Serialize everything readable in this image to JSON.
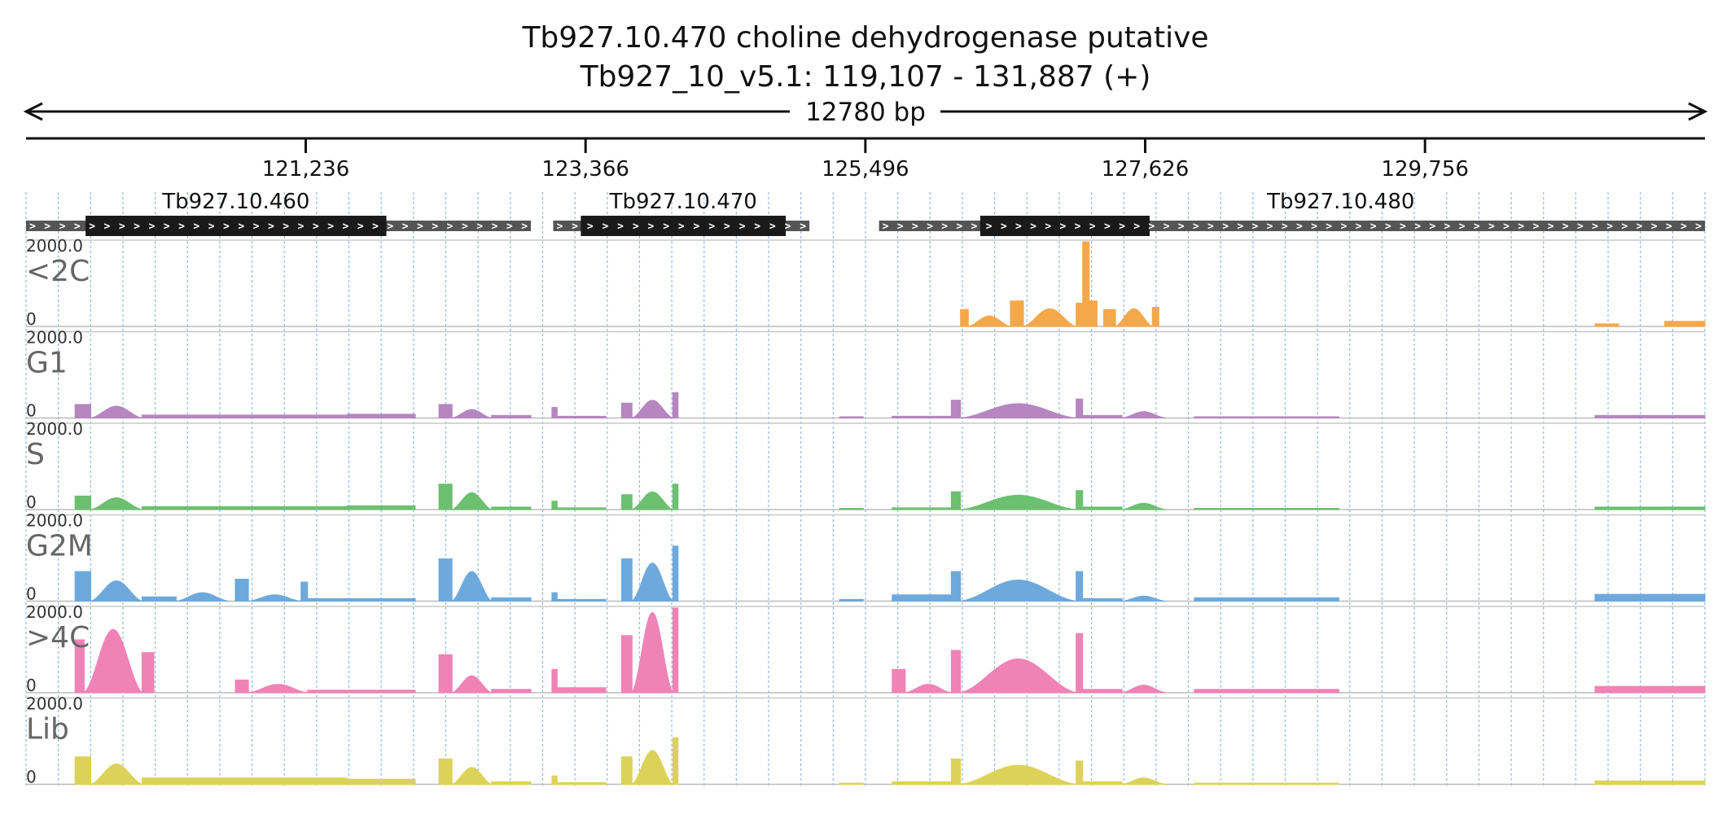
{
  "title": {
    "line1": "Tb927.10.470  choline dehydrogenase  putative",
    "line2": "Tb927_10_v5.1: 119,107 - 131,887 (+)"
  },
  "span": {
    "label": "12780 bp"
  },
  "colors": {
    "<2C": "#f5a84a",
    "G1": "#b586bf",
    "S": "#6cc06f",
    "G2M": "#6ea9dc",
    ">4C": "#f083b6",
    "Lib": "#dcd25a",
    "gene_core": "#1a1a1a",
    "gene_flank": "#555555",
    "gridline": "#8fb9df"
  },
  "chart_data": {
    "type": "area",
    "region": {
      "chrom": "Tb927_10_v5.1",
      "start": 119107,
      "end": 131887,
      "strand": "+"
    },
    "x_ticks": [
      {
        "pos": 121236,
        "label": "121,236"
      },
      {
        "pos": 123366,
        "label": "123,366"
      },
      {
        "pos": 125496,
        "label": "125,496"
      },
      {
        "pos": 127626,
        "label": "127,626"
      },
      {
        "pos": 129756,
        "label": "129,756"
      }
    ],
    "genes": [
      {
        "name": "Tb927.10.460",
        "start": 119107,
        "end": 122950,
        "cds_start": 119560,
        "cds_end": 121850
      },
      {
        "name": "Tb927.10.470",
        "start": 123120,
        "end": 125070,
        "cds_start": 123330,
        "cds_end": 124890
      },
      {
        "name": "Tb927.10.480",
        "start": 125600,
        "end": 131887,
        "cds_start": 126370,
        "cds_end": 127660
      }
    ],
    "ylim": [
      0,
      2000
    ],
    "ymax_label": "2000.0",
    "ymin_label": "0",
    "tracks": [
      {
        "name": "<2C",
        "segments": [
          {
            "start": 126220,
            "end": 126280,
            "peak": 400,
            "shape": "flat"
          },
          {
            "start": 126280,
            "end": 126600,
            "peak": 250,
            "shape": "hump"
          },
          {
            "start": 126600,
            "end": 126700,
            "peak": 600,
            "shape": "flat"
          },
          {
            "start": 126700,
            "end": 127100,
            "peak": 420,
            "shape": "hump"
          },
          {
            "start": 127100,
            "end": 127150,
            "peak": 550,
            "shape": "flat"
          },
          {
            "start": 127150,
            "end": 127200,
            "peak": 2000,
            "shape": "flat"
          },
          {
            "start": 127200,
            "end": 127260,
            "peak": 600,
            "shape": "flat"
          },
          {
            "start": 127310,
            "end": 127400,
            "peak": 400,
            "shape": "flat"
          },
          {
            "start": 127400,
            "end": 127680,
            "peak": 420,
            "shape": "hump"
          },
          {
            "start": 127680,
            "end": 127730,
            "peak": 450,
            "shape": "flat"
          },
          {
            "start": 131050,
            "end": 131230,
            "peak": 60,
            "shape": "flat"
          },
          {
            "start": 131580,
            "end": 131887,
            "peak": 120,
            "shape": "flat"
          }
        ]
      },
      {
        "name": "G1",
        "segments": [
          {
            "start": 119480,
            "end": 119600,
            "peak": 320,
            "shape": "flat"
          },
          {
            "start": 119600,
            "end": 119990,
            "peak": 280,
            "shape": "hump"
          },
          {
            "start": 119990,
            "end": 121550,
            "peak": 70,
            "shape": "flat"
          },
          {
            "start": 121550,
            "end": 122070,
            "peak": 90,
            "shape": "flat"
          },
          {
            "start": 122250,
            "end": 122350,
            "peak": 320,
            "shape": "flat"
          },
          {
            "start": 122350,
            "end": 122650,
            "peak": 200,
            "shape": "hump"
          },
          {
            "start": 122650,
            "end": 122950,
            "peak": 60,
            "shape": "flat"
          },
          {
            "start": 123110,
            "end": 123150,
            "peak": 250,
            "shape": "flat"
          },
          {
            "start": 123150,
            "end": 123520,
            "peak": 40,
            "shape": "flat"
          },
          {
            "start": 123640,
            "end": 123720,
            "peak": 350,
            "shape": "flat"
          },
          {
            "start": 123720,
            "end": 124030,
            "peak": 420,
            "shape": "hump"
          },
          {
            "start": 124030,
            "end": 124070,
            "peak": 600,
            "shape": "flat"
          },
          {
            "start": 125300,
            "end": 125480,
            "peak": 30,
            "shape": "flat"
          },
          {
            "start": 125700,
            "end": 126150,
            "peak": 40,
            "shape": "flat"
          },
          {
            "start": 126150,
            "end": 126220,
            "peak": 420,
            "shape": "flat"
          },
          {
            "start": 126220,
            "end": 127100,
            "peak": 340,
            "shape": "hump"
          },
          {
            "start": 127100,
            "end": 127150,
            "peak": 450,
            "shape": "flat"
          },
          {
            "start": 127150,
            "end": 127450,
            "peak": 60,
            "shape": "flat"
          },
          {
            "start": 127450,
            "end": 127780,
            "peak": 150,
            "shape": "hump"
          },
          {
            "start": 128000,
            "end": 129100,
            "peak": 30,
            "shape": "flat"
          },
          {
            "start": 131050,
            "end": 131887,
            "peak": 60,
            "shape": "flat"
          }
        ]
      },
      {
        "name": "S",
        "segments": [
          {
            "start": 119480,
            "end": 119600,
            "peak": 320,
            "shape": "flat"
          },
          {
            "start": 119600,
            "end": 119990,
            "peak": 280,
            "shape": "hump"
          },
          {
            "start": 119990,
            "end": 121550,
            "peak": 70,
            "shape": "flat"
          },
          {
            "start": 121550,
            "end": 122070,
            "peak": 90,
            "shape": "flat"
          },
          {
            "start": 122250,
            "end": 122350,
            "peak": 600,
            "shape": "flat"
          },
          {
            "start": 122350,
            "end": 122650,
            "peak": 400,
            "shape": "hump"
          },
          {
            "start": 122650,
            "end": 122950,
            "peak": 60,
            "shape": "flat"
          },
          {
            "start": 123110,
            "end": 123150,
            "peak": 200,
            "shape": "flat"
          },
          {
            "start": 123150,
            "end": 123520,
            "peak": 40,
            "shape": "flat"
          },
          {
            "start": 123640,
            "end": 123720,
            "peak": 350,
            "shape": "flat"
          },
          {
            "start": 123720,
            "end": 124030,
            "peak": 420,
            "shape": "hump"
          },
          {
            "start": 124030,
            "end": 124070,
            "peak": 600,
            "shape": "flat"
          },
          {
            "start": 125300,
            "end": 125480,
            "peak": 30,
            "shape": "flat"
          },
          {
            "start": 125700,
            "end": 126150,
            "peak": 40,
            "shape": "flat"
          },
          {
            "start": 126150,
            "end": 126220,
            "peak": 420,
            "shape": "flat"
          },
          {
            "start": 126220,
            "end": 127100,
            "peak": 340,
            "shape": "hump"
          },
          {
            "start": 127100,
            "end": 127150,
            "peak": 450,
            "shape": "flat"
          },
          {
            "start": 127150,
            "end": 127450,
            "peak": 60,
            "shape": "flat"
          },
          {
            "start": 127450,
            "end": 127780,
            "peak": 150,
            "shape": "hump"
          },
          {
            "start": 128000,
            "end": 129100,
            "peak": 30,
            "shape": "flat"
          },
          {
            "start": 131050,
            "end": 131887,
            "peak": 60,
            "shape": "flat"
          }
        ]
      },
      {
        "name": "G2M",
        "segments": [
          {
            "start": 119480,
            "end": 119600,
            "peak": 700,
            "shape": "flat"
          },
          {
            "start": 119600,
            "end": 119990,
            "peak": 480,
            "shape": "hump"
          },
          {
            "start": 119990,
            "end": 120250,
            "peak": 100,
            "shape": "flat"
          },
          {
            "start": 120250,
            "end": 120650,
            "peak": 200,
            "shape": "hump"
          },
          {
            "start": 120700,
            "end": 120800,
            "peak": 520,
            "shape": "flat"
          },
          {
            "start": 120800,
            "end": 121200,
            "peak": 150,
            "shape": "hump"
          },
          {
            "start": 121200,
            "end": 121250,
            "peak": 450,
            "shape": "flat"
          },
          {
            "start": 121250,
            "end": 122070,
            "peak": 60,
            "shape": "flat"
          },
          {
            "start": 122250,
            "end": 122350,
            "peak": 1000,
            "shape": "flat"
          },
          {
            "start": 122350,
            "end": 122650,
            "peak": 700,
            "shape": "hump"
          },
          {
            "start": 122650,
            "end": 122950,
            "peak": 80,
            "shape": "flat"
          },
          {
            "start": 123110,
            "end": 123150,
            "peak": 200,
            "shape": "flat"
          },
          {
            "start": 123150,
            "end": 123520,
            "peak": 40,
            "shape": "flat"
          },
          {
            "start": 123640,
            "end": 123720,
            "peak": 1000,
            "shape": "flat"
          },
          {
            "start": 123720,
            "end": 124030,
            "peak": 900,
            "shape": "hump"
          },
          {
            "start": 124030,
            "end": 124070,
            "peak": 1300,
            "shape": "flat"
          },
          {
            "start": 125300,
            "end": 125480,
            "peak": 40,
            "shape": "flat"
          },
          {
            "start": 125700,
            "end": 126150,
            "peak": 150,
            "shape": "flat"
          },
          {
            "start": 126150,
            "end": 126220,
            "peak": 700,
            "shape": "flat"
          },
          {
            "start": 126220,
            "end": 127100,
            "peak": 500,
            "shape": "hump"
          },
          {
            "start": 127100,
            "end": 127150,
            "peak": 700,
            "shape": "flat"
          },
          {
            "start": 127150,
            "end": 127450,
            "peak": 60,
            "shape": "flat"
          },
          {
            "start": 127450,
            "end": 127780,
            "peak": 120,
            "shape": "hump"
          },
          {
            "start": 128000,
            "end": 129100,
            "peak": 80,
            "shape": "flat"
          },
          {
            "start": 131050,
            "end": 131887,
            "peak": 160,
            "shape": "flat"
          }
        ]
      },
      {
        "name": ">4C",
        "segments": [
          {
            "start": 119480,
            "end": 119550,
            "peak": 1250,
            "shape": "flat"
          },
          {
            "start": 119550,
            "end": 119990,
            "peak": 1500,
            "shape": "hump"
          },
          {
            "start": 119990,
            "end": 120080,
            "peak": 950,
            "shape": "flat"
          },
          {
            "start": 120700,
            "end": 120800,
            "peak": 300,
            "shape": "flat"
          },
          {
            "start": 120800,
            "end": 121250,
            "peak": 200,
            "shape": "hump"
          },
          {
            "start": 121250,
            "end": 122070,
            "peak": 60,
            "shape": "flat"
          },
          {
            "start": 122250,
            "end": 122350,
            "peak": 900,
            "shape": "flat"
          },
          {
            "start": 122350,
            "end": 122650,
            "peak": 400,
            "shape": "hump"
          },
          {
            "start": 122650,
            "end": 122950,
            "peak": 80,
            "shape": "flat"
          },
          {
            "start": 123110,
            "end": 123150,
            "peak": 550,
            "shape": "flat"
          },
          {
            "start": 123150,
            "end": 123520,
            "peak": 120,
            "shape": "flat"
          },
          {
            "start": 123640,
            "end": 123720,
            "peak": 1350,
            "shape": "flat"
          },
          {
            "start": 123720,
            "end": 124030,
            "peak": 1900,
            "shape": "hump"
          },
          {
            "start": 124030,
            "end": 124070,
            "peak": 2000,
            "shape": "flat"
          },
          {
            "start": 125700,
            "end": 125800,
            "peak": 550,
            "shape": "flat"
          },
          {
            "start": 125800,
            "end": 126150,
            "peak": 200,
            "shape": "hump"
          },
          {
            "start": 126150,
            "end": 126220,
            "peak": 1000,
            "shape": "flat"
          },
          {
            "start": 126220,
            "end": 127100,
            "peak": 800,
            "shape": "hump"
          },
          {
            "start": 127100,
            "end": 127150,
            "peak": 1400,
            "shape": "flat"
          },
          {
            "start": 127150,
            "end": 127450,
            "peak": 80,
            "shape": "flat"
          },
          {
            "start": 127450,
            "end": 127780,
            "peak": 180,
            "shape": "hump"
          },
          {
            "start": 128000,
            "end": 129100,
            "peak": 80,
            "shape": "flat"
          },
          {
            "start": 131050,
            "end": 131887,
            "peak": 150,
            "shape": "flat"
          }
        ]
      },
      {
        "name": "Lib",
        "segments": [
          {
            "start": 119480,
            "end": 119600,
            "peak": 650,
            "shape": "flat"
          },
          {
            "start": 119600,
            "end": 119990,
            "peak": 480,
            "shape": "hump"
          },
          {
            "start": 119990,
            "end": 121550,
            "peak": 150,
            "shape": "flat"
          },
          {
            "start": 121550,
            "end": 122070,
            "peak": 120,
            "shape": "flat"
          },
          {
            "start": 122250,
            "end": 122350,
            "peak": 600,
            "shape": "flat"
          },
          {
            "start": 122350,
            "end": 122650,
            "peak": 400,
            "shape": "hump"
          },
          {
            "start": 122650,
            "end": 122950,
            "peak": 60,
            "shape": "flat"
          },
          {
            "start": 123110,
            "end": 123150,
            "peak": 200,
            "shape": "flat"
          },
          {
            "start": 123150,
            "end": 123520,
            "peak": 40,
            "shape": "flat"
          },
          {
            "start": 123640,
            "end": 123720,
            "peak": 650,
            "shape": "flat"
          },
          {
            "start": 123720,
            "end": 124030,
            "peak": 800,
            "shape": "hump"
          },
          {
            "start": 124030,
            "end": 124070,
            "peak": 1100,
            "shape": "flat"
          },
          {
            "start": 125300,
            "end": 125480,
            "peak": 30,
            "shape": "flat"
          },
          {
            "start": 125700,
            "end": 126150,
            "peak": 60,
            "shape": "flat"
          },
          {
            "start": 126150,
            "end": 126220,
            "peak": 600,
            "shape": "flat"
          },
          {
            "start": 126220,
            "end": 127100,
            "peak": 450,
            "shape": "hump"
          },
          {
            "start": 127100,
            "end": 127150,
            "peak": 550,
            "shape": "flat"
          },
          {
            "start": 127150,
            "end": 127450,
            "peak": 60,
            "shape": "flat"
          },
          {
            "start": 127450,
            "end": 127780,
            "peak": 150,
            "shape": "hump"
          },
          {
            "start": 128000,
            "end": 129100,
            "peak": 30,
            "shape": "flat"
          },
          {
            "start": 131050,
            "end": 131887,
            "peak": 80,
            "shape": "flat"
          }
        ]
      }
    ]
  }
}
